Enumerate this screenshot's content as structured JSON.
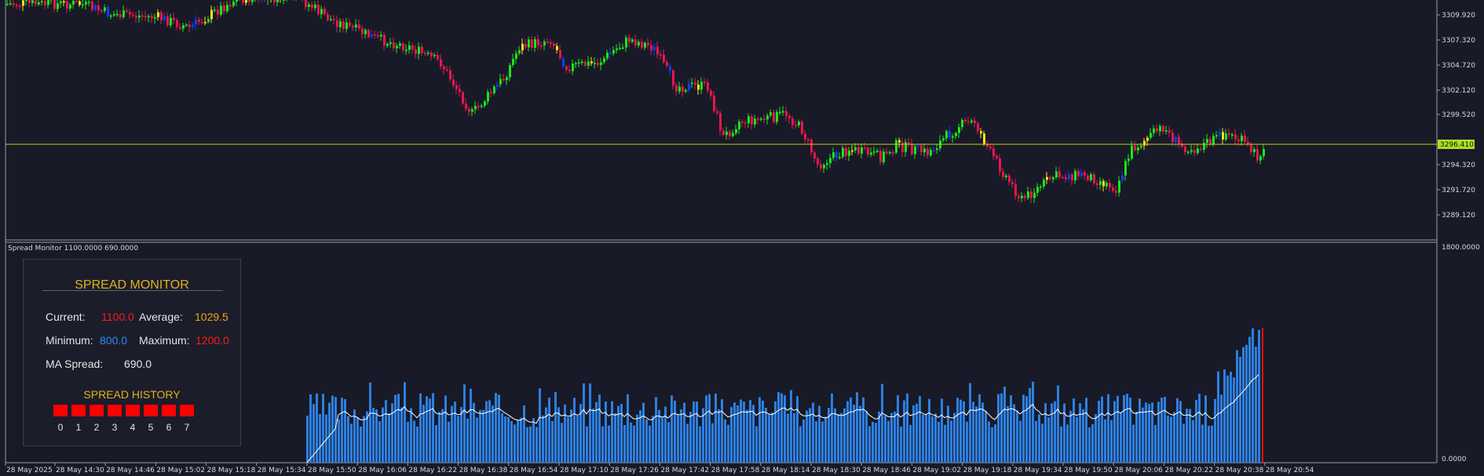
{
  "main_chart": {
    "price_scale": [
      "3309.920",
      "3307.320",
      "3304.720",
      "3302.120",
      "3299.520",
      "3294.320",
      "3291.720",
      "3289.120"
    ],
    "current_price_label": "3296.410",
    "line_color": "#c9c92a",
    "bull_color": "#17e81a",
    "bear_color": "#e8164f",
    "up_color": "#0b3fff"
  },
  "indicator": {
    "title": "Spread Monitor 1100.0000 690.0000",
    "scale_top": "1800.0000",
    "scale_bottom": "0.0000",
    "bar_color": "#2d7fe0",
    "ma_color": "#ffffff",
    "cursor_color": "#e01010"
  },
  "panel": {
    "title": "SPREAD MONITOR",
    "current_label": "Current:",
    "current_value": "1100.0",
    "average_label": "Average:",
    "average_value": "1029.5",
    "minimum_label": "Minimum:",
    "minimum_value": "800.0",
    "maximum_label": "Maximum:",
    "maximum_value": "1200.0",
    "ma_label": "MA Spread:",
    "ma_value": "690.0",
    "history_title": "SPREAD HISTORY",
    "history_indices": [
      "0",
      "1",
      "2",
      "3",
      "4",
      "5",
      "6",
      "7"
    ],
    "colors": {
      "red": "#ff1a1a",
      "orange": "#f2a516",
      "blue": "#2b8cff",
      "gold": "#e2b11d"
    }
  },
  "time_axis": [
    "28 May 2025",
    "28 May 14:30",
    "28 May 14:46",
    "28 May 15:02",
    "28 May 15:18",
    "28 May 15:34",
    "28 May 15:50",
    "28 May 16:06",
    "28 May 16:22",
    "28 May 16:38",
    "28 May 16:54",
    "28 May 17:10",
    "28 May 17:26",
    "28 May 17:42",
    "28 May 17:58",
    "28 May 18:14",
    "28 May 18:30",
    "28 May 18:46",
    "28 May 19:02",
    "28 May 19:18",
    "28 May 19:34",
    "28 May 19:50",
    "28 May 20:06",
    "28 May 20:22",
    "28 May 20:38",
    "28 May 20:54"
  ]
}
